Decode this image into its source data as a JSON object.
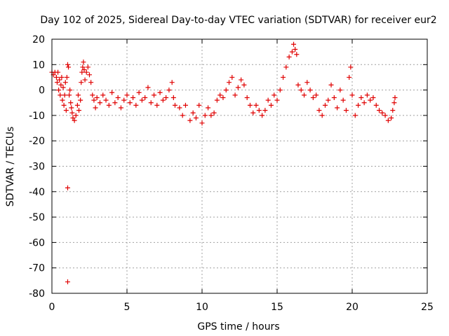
{
  "chart_data": {
    "type": "scatter",
    "title": "Day 102 of 2025, Sidereal Day-to-day VTEC variation (SDTVAR) for receiver eur2",
    "xlabel": "GPS time / hours",
    "ylabel": "SDTVAR / TECUs",
    "xlim": [
      0,
      25
    ],
    "ylim": [
      -80,
      20
    ],
    "xticks": [
      0,
      5,
      10,
      15,
      20,
      25
    ],
    "yticks": [
      20,
      10,
      0,
      -10,
      -20,
      -30,
      -40,
      -50,
      -60,
      -70,
      -80
    ],
    "grid": true,
    "marker": "+",
    "series_color": "#e00000",
    "series": [
      {
        "name": "SDTVAR",
        "points": [
          [
            0.0,
            7
          ],
          [
            0.1,
            6
          ],
          [
            0.2,
            7
          ],
          [
            0.3,
            5
          ],
          [
            0.35,
            3
          ],
          [
            0.4,
            7
          ],
          [
            0.45,
            0
          ],
          [
            0.5,
            4
          ],
          [
            0.55,
            -2
          ],
          [
            0.6,
            2
          ],
          [
            0.65,
            5
          ],
          [
            0.7,
            -4
          ],
          [
            0.75,
            1
          ],
          [
            0.8,
            -6
          ],
          [
            0.85,
            -2
          ],
          [
            0.9,
            3
          ],
          [
            0.95,
            -8
          ],
          [
            1.0,
            5
          ],
          [
            1.05,
            10
          ],
          [
            1.1,
            9
          ],
          [
            1.15,
            -2
          ],
          [
            1.2,
            0
          ],
          [
            1.25,
            -5
          ],
          [
            1.3,
            -7
          ],
          [
            1.35,
            -9
          ],
          [
            1.4,
            -11
          ],
          [
            1.5,
            -12
          ],
          [
            1.6,
            -10
          ],
          [
            1.7,
            -6
          ],
          [
            1.75,
            -2
          ],
          [
            1.8,
            -8
          ],
          [
            1.9,
            -4
          ],
          [
            1.95,
            3
          ],
          [
            2.0,
            7
          ],
          [
            2.05,
            9
          ],
          [
            2.1,
            11
          ],
          [
            2.15,
            8
          ],
          [
            2.2,
            4
          ],
          [
            2.3,
            7
          ],
          [
            2.4,
            9
          ],
          [
            2.5,
            6
          ],
          [
            2.6,
            3
          ],
          [
            2.7,
            -2
          ],
          [
            2.8,
            -4
          ],
          [
            2.9,
            -7
          ],
          [
            3.0,
            -3
          ],
          [
            3.2,
            -5
          ],
          [
            3.4,
            -2
          ],
          [
            3.6,
            -4
          ],
          [
            3.8,
            -6
          ],
          [
            4.0,
            -1
          ],
          [
            4.2,
            -5
          ],
          [
            4.4,
            -3
          ],
          [
            4.6,
            -7
          ],
          [
            4.8,
            -4
          ],
          [
            5.0,
            -2
          ],
          [
            5.2,
            -5
          ],
          [
            5.4,
            -3
          ],
          [
            5.6,
            -6
          ],
          [
            5.8,
            -1
          ],
          [
            6.0,
            -4
          ],
          [
            6.2,
            -3
          ],
          [
            6.4,
            1
          ],
          [
            6.6,
            -5
          ],
          [
            6.8,
            -2
          ],
          [
            7.0,
            -6
          ],
          [
            7.2,
            -1
          ],
          [
            7.4,
            -4
          ],
          [
            7.6,
            -3
          ],
          [
            7.8,
            0
          ],
          [
            8.0,
            3
          ],
          [
            8.1,
            -3
          ],
          [
            8.2,
            -6
          ],
          [
            8.5,
            -7
          ],
          [
            8.7,
            -10
          ],
          [
            8.9,
            -6
          ],
          [
            9.2,
            -12
          ],
          [
            9.4,
            -9
          ],
          [
            9.6,
            -11
          ],
          [
            9.8,
            -6
          ],
          [
            10.0,
            -13
          ],
          [
            10.2,
            -10
          ],
          [
            10.4,
            -7
          ],
          [
            10.6,
            -10
          ],
          [
            10.8,
            -9
          ],
          [
            11.0,
            -4
          ],
          [
            11.2,
            -2
          ],
          [
            11.4,
            -3
          ],
          [
            11.6,
            0
          ],
          [
            11.8,
            3
          ],
          [
            12.0,
            5
          ],
          [
            12.2,
            -2
          ],
          [
            12.4,
            1
          ],
          [
            12.6,
            4
          ],
          [
            12.8,
            2
          ],
          [
            13.0,
            -3
          ],
          [
            13.2,
            -6
          ],
          [
            13.4,
            -9
          ],
          [
            13.6,
            -6
          ],
          [
            13.8,
            -8
          ],
          [
            14.0,
            -10
          ],
          [
            14.2,
            -8
          ],
          [
            14.4,
            -4
          ],
          [
            14.6,
            -6
          ],
          [
            14.8,
            -2
          ],
          [
            15.0,
            -4
          ],
          [
            15.2,
            0
          ],
          [
            15.4,
            5
          ],
          [
            15.6,
            9
          ],
          [
            15.8,
            13
          ],
          [
            16.0,
            15
          ],
          [
            16.1,
            18
          ],
          [
            16.2,
            16
          ],
          [
            16.3,
            14
          ],
          [
            16.4,
            2
          ],
          [
            16.6,
            0
          ],
          [
            16.8,
            -2
          ],
          [
            17.0,
            3
          ],
          [
            17.2,
            0
          ],
          [
            17.4,
            -3
          ],
          [
            17.6,
            -2
          ],
          [
            17.8,
            -8
          ],
          [
            18.0,
            -10
          ],
          [
            18.2,
            -6
          ],
          [
            18.4,
            -4
          ],
          [
            18.6,
            2
          ],
          [
            18.8,
            -3
          ],
          [
            19.0,
            -7
          ],
          [
            19.2,
            0
          ],
          [
            19.4,
            -4
          ],
          [
            19.6,
            -8
          ],
          [
            19.8,
            5
          ],
          [
            19.9,
            9
          ],
          [
            20.0,
            -2
          ],
          [
            20.2,
            -10
          ],
          [
            20.4,
            -6
          ],
          [
            20.6,
            -3
          ],
          [
            20.8,
            -5
          ],
          [
            21.0,
            -2
          ],
          [
            21.2,
            -4
          ],
          [
            21.4,
            -3
          ],
          [
            21.6,
            -6
          ],
          [
            21.8,
            -8
          ],
          [
            22.0,
            -9
          ],
          [
            22.2,
            -10
          ],
          [
            22.4,
            -12
          ],
          [
            22.6,
            -11
          ],
          [
            22.7,
            -8
          ],
          [
            22.8,
            -5
          ],
          [
            22.85,
            -3
          ],
          [
            1.05,
            -38.5
          ],
          [
            1.05,
            -75.5
          ]
        ]
      }
    ]
  }
}
